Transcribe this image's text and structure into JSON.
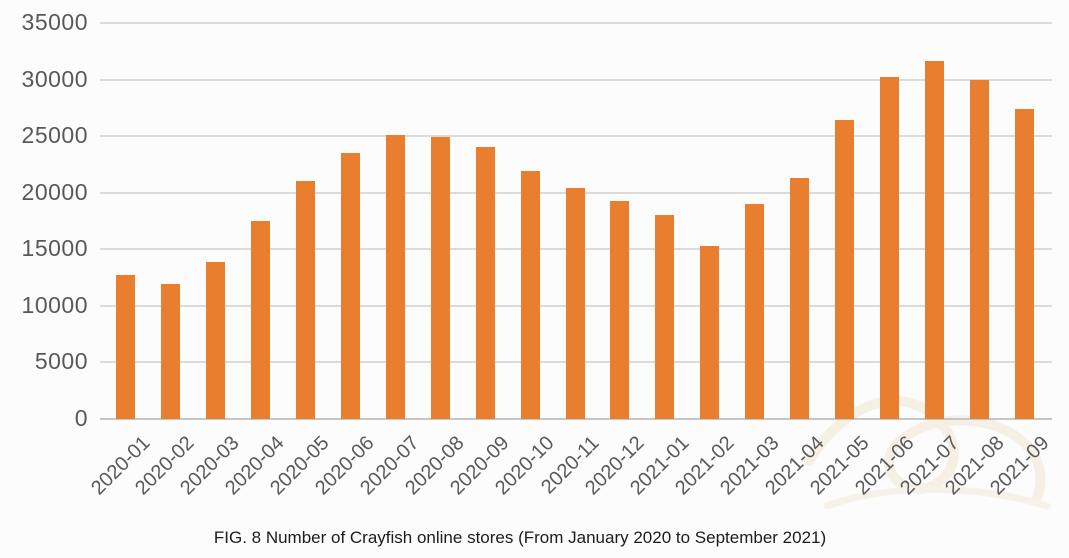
{
  "figure": {
    "caption": "FIG. 8 Number of Crayfish online stores (From January 2020 to September 2021)"
  },
  "chart_data": {
    "type": "bar",
    "title": "FIG. 8 Number of Crayfish online stores (From January 2020 to September 2021)",
    "xlabel": "",
    "ylabel": "",
    "categories": [
      "2020-01",
      "2020-02",
      "2020-03",
      "2020-04",
      "2020-05",
      "2020-06",
      "2020-07",
      "2020-08",
      "2020-09",
      "2020-10",
      "2020-11",
      "2020-12",
      "2021-01",
      "2021-02",
      "2021-03",
      "2021-04",
      "2021-05",
      "2021-06",
      "2021-07",
      "2021-08",
      "2021-09"
    ],
    "values": [
      12700,
      11900,
      13900,
      17500,
      21000,
      23500,
      25100,
      24900,
      24000,
      21900,
      20400,
      19300,
      18000,
      15300,
      19000,
      21300,
      26400,
      30200,
      31600,
      30000,
      27400
    ],
    "ylim": [
      0,
      35000
    ],
    "yticks": [
      0,
      5000,
      10000,
      15000,
      20000,
      25000,
      30000,
      35000
    ],
    "grid": true,
    "legend_position": "none",
    "bar_color": "#E87E2E",
    "tick_label_color": "#595959",
    "gridline_color": "#DBDBDB",
    "baseline_color": "#C6C6C6",
    "background_color": "#FCFCFC"
  }
}
